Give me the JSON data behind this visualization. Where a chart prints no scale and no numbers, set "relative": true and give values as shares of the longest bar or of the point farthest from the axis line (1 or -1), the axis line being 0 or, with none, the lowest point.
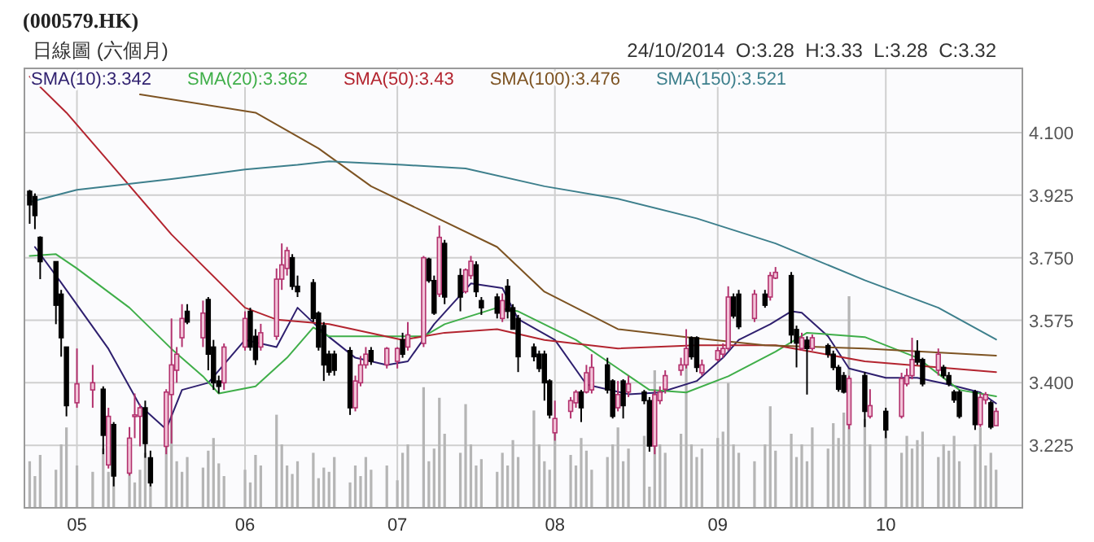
{
  "chart_data": [
    {
      "type": "candlestick",
      "title": "(000579.HK)",
      "subtitle": "日線圖 (六個月)",
      "annotations": [
        "24/10/2014  O:3.28  H:3.33  L:3.28  C:3.32"
      ],
      "x": [
        "2014-04-23",
        "2014-04-24",
        "2014-04-25",
        "2014-04-28",
        "2014-04-29",
        "2014-04-30",
        "2014-05-02",
        "2014-05-05",
        "2014-05-07",
        "2014-05-08",
        "2014-05-09",
        "2014-05-12",
        "2014-05-13",
        "2014-05-14",
        "2014-05-15",
        "2014-05-16",
        "2014-05-19",
        "2014-05-20",
        "2014-05-21",
        "2014-05-22",
        "2014-05-23",
        "2014-05-26",
        "2014-05-27",
        "2014-05-28",
        "2014-05-29",
        "2014-05-30",
        "2014-06-03",
        "2014-06-04",
        "2014-06-05",
        "2014-06-06",
        "2014-06-09",
        "2014-06-10",
        "2014-06-11",
        "2014-06-12",
        "2014-06-13",
        "2014-06-16",
        "2014-06-17",
        "2014-06-18",
        "2014-06-19",
        "2014-06-20",
        "2014-06-23",
        "2014-06-24",
        "2014-06-25",
        "2014-06-26",
        "2014-06-27",
        "2014-06-30",
        "2014-07-02",
        "2014-07-03",
        "2014-07-04",
        "2014-07-07",
        "2014-07-08",
        "2014-07-09",
        "2014-07-10",
        "2014-07-11",
        "2014-07-14",
        "2014-07-15",
        "2014-07-16",
        "2014-07-17",
        "2014-07-18",
        "2014-07-21",
        "2014-07-22",
        "2014-07-23",
        "2014-07-24",
        "2014-07-25",
        "2014-07-28",
        "2014-07-29",
        "2014-07-30",
        "2014-07-31",
        "2014-08-01",
        "2014-08-04",
        "2014-08-05",
        "2014-08-06",
        "2014-08-07",
        "2014-08-08",
        "2014-08-11",
        "2014-08-12",
        "2014-08-13",
        "2014-08-14",
        "2014-08-15",
        "2014-08-18",
        "2014-08-19",
        "2014-08-20",
        "2014-08-21",
        "2014-08-22",
        "2014-08-25",
        "2014-08-26",
        "2014-08-27",
        "2014-08-28",
        "2014-08-29",
        "2014-09-01",
        "2014-09-02",
        "2014-09-03",
        "2014-09-04",
        "2014-09-05",
        "2014-09-08",
        "2014-09-10",
        "2014-09-11",
        "2014-09-12",
        "2014-09-15",
        "2014-09-16",
        "2014-09-17",
        "2014-09-18",
        "2014-09-19",
        "2014-09-22",
        "2014-09-23",
        "2014-09-24",
        "2014-09-25",
        "2014-09-26",
        "2014-09-29",
        "2014-09-30",
        "2014-10-03",
        "2014-10-06",
        "2014-10-07",
        "2014-10-08",
        "2014-10-09",
        "2014-10-10",
        "2014-10-13",
        "2014-10-14",
        "2014-10-15",
        "2014-10-16",
        "2014-10-17",
        "2014-10-20",
        "2014-10-21",
        "2014-10-22",
        "2014-10-23",
        "2014-10-24"
      ],
      "ohlc": [
        [
          3.936,
          3.94,
          3.845,
          3.898
        ],
        [
          3.921,
          3.93,
          3.83,
          3.868
        ],
        [
          3.807,
          3.81,
          3.69,
          3.739
        ],
        [
          3.739,
          3.74,
          3.564,
          3.617
        ],
        [
          3.648,
          3.66,
          3.473,
          3.526
        ],
        [
          3.5,
          3.5,
          3.306,
          3.336
        ],
        [
          3.344,
          3.496,
          3.33,
          3.397
        ],
        [
          3.38,
          3.45,
          3.33,
          3.4
        ],
        [
          3.382,
          3.39,
          3.2,
          3.253
        ],
        [
          3.17,
          3.33,
          3.16,
          3.306
        ],
        [
          3.283,
          3.29,
          3.11,
          3.139
        ],
        [
          3.147,
          3.276,
          3.14,
          3.245
        ],
        [
          3.306,
          3.37,
          3.245,
          3.31
        ],
        [
          3.306,
          3.34,
          3.222,
          3.33
        ],
        [
          3.33,
          3.35,
          3.19,
          3.23
        ],
        [
          3.19,
          3.21,
          3.11,
          3.12
        ],
        [
          3.222,
          3.382,
          3.2,
          3.374
        ],
        [
          3.367,
          3.58,
          3.23,
          3.45
        ],
        [
          3.435,
          3.5,
          3.4,
          3.48
        ],
        [
          3.526,
          3.62,
          3.5,
          3.58
        ],
        [
          3.6,
          3.62,
          3.564,
          3.57
        ],
        [
          3.526,
          3.63,
          3.5,
          3.595
        ],
        [
          3.633,
          3.64,
          3.435,
          3.48
        ],
        [
          3.5,
          3.52,
          3.38,
          3.4
        ],
        [
          3.405,
          3.42,
          3.37,
          3.39
        ],
        [
          3.4,
          3.51,
          3.38,
          3.5
        ],
        [
          3.5,
          3.6,
          3.49,
          3.58
        ],
        [
          3.6,
          3.61,
          3.49,
          3.5
        ],
        [
          3.53,
          3.55,
          3.45,
          3.465
        ],
        [
          3.5,
          3.565,
          3.49,
          3.54
        ],
        [
          3.53,
          3.72,
          3.52,
          3.69
        ],
        [
          3.69,
          3.79,
          3.66,
          3.73
        ],
        [
          3.72,
          3.78,
          3.7,
          3.77
        ],
        [
          3.75,
          3.76,
          3.66,
          3.67
        ],
        [
          3.67,
          3.7,
          3.64,
          3.655
        ],
        [
          3.68,
          3.69,
          3.57,
          3.58
        ],
        [
          3.595,
          3.6,
          3.49,
          3.5
        ],
        [
          3.56,
          3.57,
          3.405,
          3.45
        ],
        [
          3.48,
          3.49,
          3.42,
          3.43
        ],
        [
          3.48,
          3.49,
          3.42,
          3.435
        ],
        [
          3.49,
          3.5,
          3.31,
          3.33
        ],
        [
          3.33,
          3.42,
          3.32,
          3.405
        ],
        [
          3.4,
          3.475,
          3.39,
          3.45
        ],
        [
          3.45,
          3.5,
          3.44,
          3.48
        ],
        [
          3.49,
          3.5,
          3.45,
          3.46
        ],
        [
          3.45,
          3.5,
          3.44,
          3.496
        ],
        [
          3.46,
          3.5,
          3.44,
          3.496
        ],
        [
          3.52,
          3.54,
          3.47,
          3.48
        ],
        [
          3.5,
          3.57,
          3.49,
          3.534
        ],
        [
          3.51,
          3.755,
          3.5,
          3.75
        ],
        [
          3.746,
          3.75,
          3.68,
          3.686
        ],
        [
          3.686,
          3.7,
          3.59,
          3.595
        ],
        [
          3.648,
          3.84,
          3.64,
          3.807
        ],
        [
          3.79,
          3.8,
          3.62,
          3.64
        ],
        [
          3.7,
          3.72,
          3.6,
          3.64
        ],
        [
          3.655,
          3.72,
          3.65,
          3.716
        ],
        [
          3.7,
          3.755,
          3.69,
          3.74
        ],
        [
          3.73,
          3.74,
          3.64,
          3.655
        ],
        [
          3.63,
          3.64,
          3.59,
          3.61
        ],
        [
          3.64,
          3.65,
          3.58,
          3.595
        ],
        [
          3.58,
          3.65,
          3.57,
          3.63
        ],
        [
          3.67,
          3.69,
          3.58,
          3.6
        ],
        [
          3.61,
          3.62,
          3.55,
          3.55
        ],
        [
          3.58,
          3.59,
          3.43,
          3.473
        ],
        [
          3.5,
          3.51,
          3.46,
          3.473
        ],
        [
          3.48,
          3.49,
          3.43,
          3.44
        ],
        [
          3.48,
          3.49,
          3.35,
          3.4
        ],
        [
          3.405,
          3.41,
          3.3,
          3.31
        ],
        [
          3.26,
          3.35,
          3.238,
          3.3
        ],
        [
          3.32,
          3.36,
          3.3,
          3.35
        ],
        [
          3.344,
          3.38,
          3.33,
          3.374
        ],
        [
          3.374,
          3.38,
          3.29,
          3.33
        ],
        [
          3.374,
          3.45,
          3.37,
          3.428
        ],
        [
          3.38,
          3.48,
          3.37,
          3.443
        ],
        [
          3.45,
          3.47,
          3.37,
          3.38
        ],
        [
          3.405,
          3.41,
          3.3,
          3.306
        ],
        [
          3.33,
          3.405,
          3.32,
          3.367
        ],
        [
          3.405,
          3.41,
          3.3,
          3.336
        ],
        [
          3.374,
          3.42,
          3.36,
          3.397
        ],
        [
          3.374,
          3.38,
          3.34,
          3.35
        ],
        [
          3.35,
          3.36,
          3.207,
          3.223
        ],
        [
          3.223,
          3.38,
          3.2,
          3.367
        ],
        [
          3.35,
          3.39,
          3.34,
          3.374
        ],
        [
          3.382,
          3.435,
          3.37,
          3.42
        ],
        [
          3.435,
          3.47,
          3.42,
          3.45
        ],
        [
          3.45,
          3.55,
          3.44,
          3.496
        ],
        [
          3.526,
          3.53,
          3.465,
          3.473
        ],
        [
          3.526,
          3.53,
          3.43,
          3.443
        ],
        [
          3.428,
          3.465,
          3.42,
          3.45
        ],
        [
          3.465,
          3.5,
          3.46,
          3.49
        ],
        [
          3.48,
          3.51,
          3.47,
          3.496
        ],
        [
          3.496,
          3.67,
          3.49,
          3.64
        ],
        [
          3.64,
          3.65,
          3.58,
          3.587
        ],
        [
          3.648,
          3.66,
          3.55,
          3.557
        ],
        [
          3.58,
          3.66,
          3.57,
          3.648
        ],
        [
          3.648,
          3.66,
          3.61,
          3.617
        ],
        [
          3.64,
          3.71,
          3.63,
          3.7
        ],
        [
          3.693,
          3.724,
          3.69,
          3.709
        ],
        [
          3.7,
          3.71,
          3.51,
          3.534
        ],
        [
          3.549,
          3.56,
          3.443,
          3.511
        ],
        [
          3.496,
          3.54,
          3.49,
          3.526
        ],
        [
          3.519,
          3.53,
          3.367,
          3.496
        ],
        [
          3.496,
          3.535,
          3.49,
          3.526
        ],
        [
          3.504,
          3.51,
          3.47,
          3.48
        ],
        [
          3.48,
          3.49,
          3.435,
          3.443
        ],
        [
          3.443,
          3.45,
          3.375,
          3.382
        ],
        [
          3.42,
          3.43,
          3.37,
          3.374
        ],
        [
          3.283,
          3.42,
          3.27,
          3.412
        ],
        [
          3.42,
          3.43,
          3.276,
          3.32
        ],
        [
          3.306,
          3.382,
          3.3,
          3.336
        ],
        [
          3.32,
          3.33,
          3.245,
          3.268
        ],
        [
          3.306,
          3.428,
          3.3,
          3.412
        ],
        [
          3.397,
          3.44,
          3.39,
          3.42
        ],
        [
          3.42,
          3.526,
          3.41,
          3.465
        ],
        [
          3.488,
          3.519,
          3.45,
          3.458
        ],
        [
          3.465,
          3.47,
          3.39,
          3.397
        ],
        [
          3.435,
          3.496,
          3.42,
          3.48
        ],
        [
          3.443,
          3.45,
          3.412,
          3.42
        ],
        [
          3.42,
          3.43,
          3.39,
          3.397
        ],
        [
          3.374,
          3.38,
          3.344,
          3.352
        ],
        [
          3.374,
          3.38,
          3.3,
          3.306
        ],
        [
          3.374,
          3.38,
          3.268,
          3.283
        ],
        [
          3.283,
          3.37,
          3.276,
          3.359
        ],
        [
          3.352,
          3.374,
          3.34,
          3.367
        ],
        [
          3.344,
          3.35,
          3.27,
          3.276
        ],
        [
          3.28,
          3.33,
          3.28,
          3.32
        ]
      ],
      "xlim": [
        "2014-04-22",
        "2014-10-29"
      ],
      "xticks": [
        {
          "value": "2014-05-02",
          "label": "05"
        },
        {
          "value": "2014-06-03",
          "label": "06"
        },
        {
          "value": "2014-07-02",
          "label": "07"
        },
        {
          "value": "2014-08-01",
          "label": "08"
        },
        {
          "value": "2014-09-01",
          "label": "09"
        },
        {
          "value": "2014-10-03",
          "label": "10"
        }
      ],
      "ylim": [
        3.05,
        4.28
      ],
      "yticks": [
        3.225,
        {
          "value": 3.4,
          "label": "3.400"
        },
        3.575,
        {
          "value": 3.75,
          "label": "3.750"
        },
        3.925,
        {
          "value": 4.1,
          "label": "4.100"
        }
      ],
      "grid": true,
      "legend": "top left",
      "series": [
        {
          "name": "SMA(10):3.342",
          "type": "line",
          "color": "#2e1f6e",
          "x": [
            "2014-04-24",
            "2014-04-29",
            "2014-05-08",
            "2014-05-14",
            "2014-05-19",
            "2014-05-22",
            "2014-05-27",
            "2014-06-03",
            "2014-06-09",
            "2014-06-13",
            "2014-06-18",
            "2014-06-24",
            "2014-06-30",
            "2014-07-04",
            "2014-07-09",
            "2014-07-16",
            "2014-07-22",
            "2014-07-25",
            "2014-08-01",
            "2014-08-07",
            "2014-08-15",
            "2014-08-21",
            "2014-08-28",
            "2014-09-02",
            "2014-09-05",
            "2014-09-11",
            "2014-09-15",
            "2014-09-17",
            "2014-09-22",
            "2014-09-26",
            "2014-10-03",
            "2014-10-09",
            "2014-10-15",
            "2014-10-21",
            "2014-10-24"
          ],
          "values": [
            3.78,
            3.68,
            3.495,
            3.336,
            3.27,
            3.38,
            3.4,
            3.52,
            3.5,
            3.61,
            3.54,
            3.47,
            3.45,
            3.46,
            3.564,
            3.678,
            3.665,
            3.578,
            3.52,
            3.395,
            3.368,
            3.373,
            3.405,
            3.47,
            3.52,
            3.564,
            3.6,
            3.596,
            3.53,
            3.44,
            3.414,
            3.414,
            3.395,
            3.373,
            3.342
          ]
        },
        {
          "name": "SMA(20):3.362",
          "type": "line",
          "color": "#3fae49",
          "x": [
            "2014-04-23",
            "2014-04-28",
            "2014-05-02",
            "2014-05-12",
            "2014-05-20",
            "2014-05-26",
            "2014-05-29",
            "2014-06-05",
            "2014-06-11",
            "2014-06-16",
            "2014-06-19",
            "2014-06-27",
            "2014-07-07",
            "2014-07-11",
            "2014-07-21",
            "2014-07-25",
            "2014-08-05",
            "2014-08-13",
            "2014-08-19",
            "2014-08-26",
            "2014-09-03",
            "2014-09-12",
            "2014-09-18",
            "2014-09-29",
            "2014-10-09",
            "2014-10-17",
            "2014-10-24"
          ],
          "values": [
            3.755,
            3.76,
            3.72,
            3.61,
            3.495,
            3.418,
            3.37,
            3.39,
            3.47,
            3.555,
            3.53,
            3.53,
            3.53,
            3.564,
            3.61,
            3.6,
            3.52,
            3.44,
            3.38,
            3.373,
            3.418,
            3.487,
            3.54,
            3.528,
            3.47,
            3.38,
            3.362
          ]
        },
        {
          "name": "SMA(50):3.43",
          "type": "line",
          "color": "#b3242f",
          "x": [
            "2014-04-23",
            "2014-04-30",
            "2014-05-08",
            "2014-05-20",
            "2014-06-03",
            "2014-06-09",
            "2014-06-19",
            "2014-07-03",
            "2014-07-11",
            "2014-07-21",
            "2014-07-30",
            "2014-08-13",
            "2014-08-28",
            "2014-09-12",
            "2014-09-29",
            "2014-10-24"
          ],
          "values": [
            4.257,
            4.156,
            4.02,
            3.815,
            3.61,
            3.577,
            3.564,
            3.52,
            3.54,
            3.55,
            3.52,
            3.496,
            3.505,
            3.505,
            3.46,
            3.43
          ]
        },
        {
          "name": "SMA(100):3.476",
          "type": "line",
          "color": "#7d5322",
          "x": [
            "2014-05-14",
            "2014-06-05",
            "2014-06-17",
            "2014-06-27",
            "2014-07-21",
            "2014-07-30",
            "2014-08-13",
            "2014-08-26",
            "2014-09-10",
            "2014-09-29",
            "2014-10-24"
          ],
          "values": [
            4.207,
            4.156,
            4.056,
            3.95,
            3.78,
            3.655,
            3.55,
            3.528,
            3.505,
            3.496,
            3.476
          ]
        },
        {
          "name": "SMA(150):3.521",
          "type": "line",
          "color": "#3d7f8c",
          "x": [
            "2014-04-23",
            "2014-05-02",
            "2014-05-20",
            "2014-06-03",
            "2014-06-13",
            "2014-06-19",
            "2014-07-03",
            "2014-07-15",
            "2014-07-30",
            "2014-08-13",
            "2014-08-28",
            "2014-09-12",
            "2014-09-29",
            "2014-10-13",
            "2014-10-24"
          ],
          "values": [
            3.906,
            3.94,
            3.97,
            3.997,
            4.01,
            4.02,
            4.01,
            4.0,
            3.95,
            3.915,
            3.86,
            3.79,
            3.687,
            3.61,
            3.521
          ]
        }
      ]
    },
    {
      "type": "bar",
      "relative": true,
      "color": "#b5b5b5",
      "xlim": [
        "2014-04-22",
        "2014-10-29"
      ],
      "x": [
        "2014-04-23",
        "2014-04-24",
        "2014-04-25",
        "2014-04-28",
        "2014-04-29",
        "2014-04-30",
        "2014-05-02",
        "2014-05-05",
        "2014-05-07",
        "2014-05-08",
        "2014-05-09",
        "2014-05-12",
        "2014-05-13",
        "2014-05-14",
        "2014-05-15",
        "2014-05-16",
        "2014-05-19",
        "2014-05-20",
        "2014-05-21",
        "2014-05-22",
        "2014-05-23",
        "2014-05-26",
        "2014-05-27",
        "2014-05-28",
        "2014-05-29",
        "2014-05-30",
        "2014-06-03",
        "2014-06-04",
        "2014-06-05",
        "2014-06-06",
        "2014-06-09",
        "2014-06-10",
        "2014-06-11",
        "2014-06-12",
        "2014-06-13",
        "2014-06-16",
        "2014-06-17",
        "2014-06-18",
        "2014-06-19",
        "2014-06-20",
        "2014-06-23",
        "2014-06-24",
        "2014-06-25",
        "2014-06-26",
        "2014-06-27",
        "2014-06-30",
        "2014-07-02",
        "2014-07-03",
        "2014-07-04",
        "2014-07-07",
        "2014-07-08",
        "2014-07-09",
        "2014-07-10",
        "2014-07-11",
        "2014-07-14",
        "2014-07-15",
        "2014-07-16",
        "2014-07-17",
        "2014-07-18",
        "2014-07-21",
        "2014-07-22",
        "2014-07-23",
        "2014-07-24",
        "2014-07-25",
        "2014-07-28",
        "2014-07-29",
        "2014-07-30",
        "2014-07-31",
        "2014-08-01",
        "2014-08-04",
        "2014-08-05",
        "2014-08-06",
        "2014-08-07",
        "2014-08-08",
        "2014-08-11",
        "2014-08-12",
        "2014-08-13",
        "2014-08-14",
        "2014-08-15",
        "2014-08-18",
        "2014-08-19",
        "2014-08-20",
        "2014-08-21",
        "2014-08-22",
        "2014-08-25",
        "2014-08-26",
        "2014-08-27",
        "2014-08-28",
        "2014-08-29",
        "2014-09-01",
        "2014-09-02",
        "2014-09-03",
        "2014-09-04",
        "2014-09-05",
        "2014-09-08",
        "2014-09-10",
        "2014-09-11",
        "2014-09-12",
        "2014-09-15",
        "2014-09-16",
        "2014-09-17",
        "2014-09-18",
        "2014-09-19",
        "2014-09-22",
        "2014-09-23",
        "2014-09-24",
        "2014-09-25",
        "2014-09-26",
        "2014-09-29",
        "2014-09-30",
        "2014-10-03",
        "2014-10-06",
        "2014-10-07",
        "2014-10-08",
        "2014-10-09",
        "2014-10-10",
        "2014-10-13",
        "2014-10-14",
        "2014-10-15",
        "2014-10-16",
        "2014-10-17",
        "2014-10-20",
        "2014-10-21",
        "2014-10-22",
        "2014-10-23",
        "2014-10-24"
      ],
      "values": [
        0.22,
        0.15,
        0.25,
        0.18,
        0.3,
        0.38,
        0.2,
        0.17,
        0.28,
        0.17,
        0.16,
        0.17,
        0.12,
        0.18,
        0.26,
        0.14,
        0.3,
        0.44,
        0.22,
        0.17,
        0.24,
        0.19,
        0.27,
        0.33,
        0.21,
        0.15,
        0.18,
        0.12,
        0.25,
        0.2,
        0.44,
        0.3,
        0.2,
        0.16,
        0.22,
        0.26,
        0.14,
        0.19,
        0.17,
        0.24,
        0.12,
        0.2,
        0.15,
        0.24,
        0.18,
        0.2,
        0.13,
        0.26,
        0.3,
        0.57,
        0.22,
        0.28,
        0.52,
        0.35,
        0.26,
        0.49,
        0.3,
        0.2,
        0.23,
        0.17,
        0.26,
        0.2,
        0.32,
        0.24,
        0.46,
        0.3,
        0.22,
        0.18,
        0.36,
        0.25,
        0.2,
        0.33,
        0.27,
        0.18,
        0.24,
        0.3,
        0.38,
        0.22,
        0.28,
        0.34,
        0.1,
        0.65,
        0.3,
        0.26,
        0.35,
        0.68,
        0.3,
        0.24,
        0.28,
        0.33,
        0.36,
        0.59,
        0.3,
        0.26,
        0.22,
        0.3,
        0.48,
        0.27,
        0.35,
        0.24,
        0.3,
        0.22,
        0.38,
        0.28,
        0.4,
        0.33,
        0.45,
        1.0,
        0.42,
        0.3,
        0.38,
        0.26,
        0.34,
        0.28,
        0.32,
        0.36,
        0.24,
        0.3,
        0.27,
        0.34,
        0.22,
        0.3,
        0.38,
        0.2,
        0.26,
        0.18
      ]
    }
  ]
}
